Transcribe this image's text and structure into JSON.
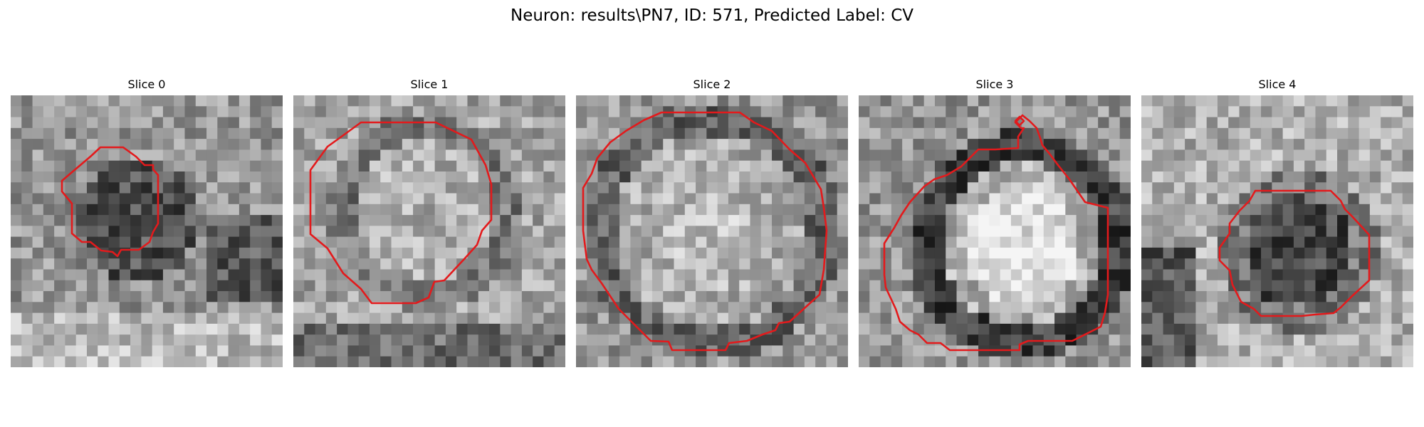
{
  "figure": {
    "title": "Neuron: results\\PN7, ID: 571, Predicted Label: CV"
  },
  "colors": {
    "contour": "#e31a1c",
    "background": "#ffffff"
  },
  "slices": [
    {
      "title": "Slice 0",
      "pattern": "dark-blob"
    },
    {
      "title": "Slice 1",
      "pattern": "soft-ring"
    },
    {
      "title": "Slice 2",
      "pattern": "bright-disc"
    },
    {
      "title": "Slice 3",
      "pattern": "ringed-disc"
    },
    {
      "title": "Slice 4",
      "pattern": "dark-blob-right"
    }
  ]
}
